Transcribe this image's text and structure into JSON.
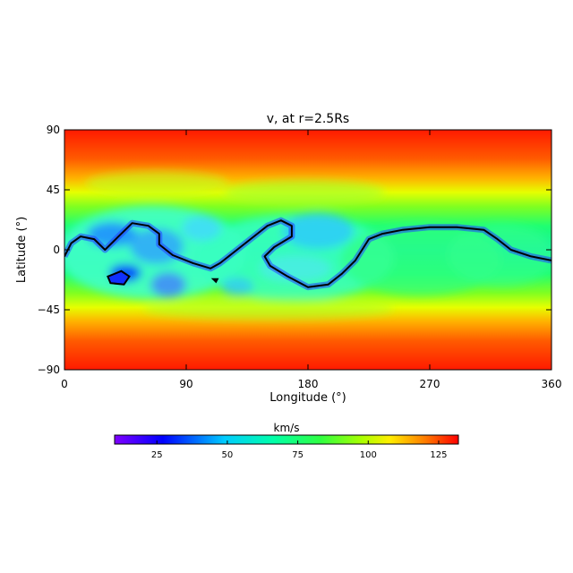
{
  "chart_data": {
    "type": "heatmap",
    "title": "v, at r=2.5Rs",
    "xlabel": "Longitude (°)",
    "ylabel": "Latitude (°)",
    "xlim": [
      0,
      360
    ],
    "ylim": [
      -90,
      90
    ],
    "x_ticks": [
      {
        "value": 0,
        "label": "0"
      },
      {
        "value": 90,
        "label": "90"
      },
      {
        "value": 180,
        "label": "180"
      },
      {
        "value": 270,
        "label": "270"
      },
      {
        "value": 360,
        "label": "360"
      }
    ],
    "y_ticks": [
      {
        "value": 90,
        "label": "90"
      },
      {
        "value": 45,
        "label": "45"
      },
      {
        "value": 0,
        "label": "0"
      },
      {
        "value": -45,
        "label": "−45"
      },
      {
        "value": -90,
        "label": "−90"
      }
    ],
    "colorbar": {
      "label": "km/s",
      "range": [
        10,
        132
      ],
      "ticks": [
        {
          "value": 25,
          "label": "25"
        },
        {
          "value": 50,
          "label": "50"
        },
        {
          "value": 75,
          "label": "75"
        },
        {
          "value": 100,
          "label": "100"
        },
        {
          "value": 125,
          "label": "125"
        }
      ],
      "colors": [
        "#7f00ff",
        "#0000ff",
        "#00ffff",
        "#00ff80",
        "#80ff00",
        "#ffff00",
        "#ff8000",
        "#ff0000"
      ]
    },
    "field_description_values": {
      "polar_speed": 130,
      "mid_latitude_speed": 85,
      "equatorial_band_speed": 70,
      "slow_pocket_speed": 45
    },
    "neutral_line": [
      [
        0,
        -5
      ],
      [
        5,
        5
      ],
      [
        12,
        10
      ],
      [
        22,
        8
      ],
      [
        30,
        0
      ],
      [
        40,
        10
      ],
      [
        50,
        20
      ],
      [
        62,
        18
      ],
      [
        70,
        12
      ],
      [
        70,
        4
      ],
      [
        80,
        -4
      ],
      [
        95,
        -10
      ],
      [
        108,
        -14
      ],
      [
        115,
        -10
      ],
      [
        125,
        -2
      ],
      [
        140,
        10
      ],
      [
        150,
        18
      ],
      [
        160,
        22
      ],
      [
        168,
        18
      ],
      [
        168,
        10
      ],
      [
        155,
        2
      ],
      [
        148,
        -5
      ],
      [
        152,
        -12
      ],
      [
        165,
        -20
      ],
      [
        180,
        -28
      ],
      [
        195,
        -26
      ],
      [
        205,
        -18
      ],
      [
        215,
        -8
      ],
      [
        225,
        8
      ],
      [
        235,
        12
      ],
      [
        250,
        15
      ],
      [
        270,
        17
      ],
      [
        290,
        17
      ],
      [
        310,
        15
      ],
      [
        320,
        8
      ],
      [
        330,
        0
      ],
      [
        345,
        -5
      ],
      [
        360,
        -8
      ]
    ],
    "closed_contours": [
      [
        [
          32,
          -20
        ],
        [
          42,
          -16
        ],
        [
          48,
          -20
        ],
        [
          44,
          -26
        ],
        [
          34,
          -25
        ],
        [
          32,
          -20
        ]
      ],
      [
        [
          110,
          -22
        ],
        [
          113,
          -22
        ],
        [
          112,
          -24
        ],
        [
          110,
          -22
        ]
      ]
    ]
  }
}
